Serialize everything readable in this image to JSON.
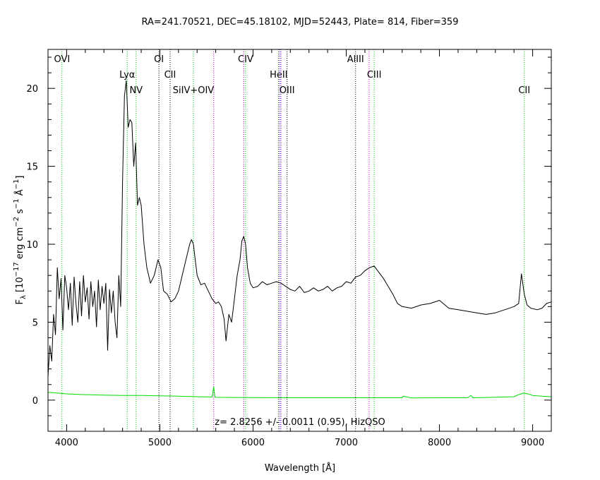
{
  "chart_data": {
    "type": "line",
    "title": "RA=241.70521, DEC=45.18102, MJD=52443, Plate= 814, Fiber=359",
    "xlabel": "Wavelength [Å]",
    "ylabel": {
      "base": "F",
      "sub": "λ",
      "open": " [10",
      "exp1": "−17",
      "mid1": " erg cm",
      "exp2": "−2",
      "mid2": " s",
      "exp3": "−1",
      "mid3": " Å",
      "exp4": "−1",
      "close": "]"
    },
    "xlim": [
      3800,
      9200
    ],
    "ylim": [
      -2,
      22.5
    ],
    "xticks": [
      4000,
      5000,
      6000,
      7000,
      8000,
      9000
    ],
    "yticks": [
      0,
      5,
      10,
      15,
      20
    ],
    "annotation": "z= 2.8256 +/- 0.0011 (0.95), HizQSO",
    "colors": {
      "spectrum": "#000000",
      "error": "#00dd00",
      "line_green": "#00cc00",
      "line_black": "#000000",
      "line_magenta": "#cc00cc",
      "line_blue": "#3333ff"
    },
    "lines": [
      {
        "name": "OVI",
        "x": 3950,
        "color": "green",
        "row": 0
      },
      {
        "name": "Lyα",
        "x": 4650,
        "color": "green",
        "row": 1
      },
      {
        "name": "NV",
        "x": 4745,
        "color": "green",
        "row": 2
      },
      {
        "name": "OI",
        "x": 4990,
        "color": "black",
        "row": 0
      },
      {
        "name": "CII",
        "x": 5110,
        "color": "black",
        "row": 1
      },
      {
        "name": "SiIV+OIV",
        "x": 5360,
        "color": "green",
        "row": 2
      },
      {
        "name": "",
        "x": 5578,
        "color": "magenta",
        "row": 0
      },
      {
        "name": "CIV",
        "x": 5920,
        "color": "green",
        "row": 0
      },
      {
        "name": "",
        "x": 5900,
        "color": "magenta",
        "row": 0
      },
      {
        "name": "HeII",
        "x": 6275,
        "color": "black",
        "row": 1
      },
      {
        "name": "",
        "x": 6300,
        "color": "magenta",
        "row": 0
      },
      {
        "name": "",
        "x": 6290,
        "color": "blue",
        "row": 0
      },
      {
        "name": "OIII",
        "x": 6365,
        "color": "black",
        "row": 2
      },
      {
        "name": "AlIII",
        "x": 7100,
        "color": "black",
        "row": 0
      },
      {
        "name": "",
        "x": 7245,
        "color": "magenta",
        "row": 0
      },
      {
        "name": "CIII",
        "x": 7300,
        "color": "green",
        "row": 1
      },
      {
        "name": "CII",
        "x": 8910,
        "color": "green",
        "row": 2
      }
    ],
    "series": [
      {
        "kind": "flux",
        "x": [
          3800,
          3820,
          3840,
          3860,
          3880,
          3900,
          3920,
          3940,
          3960,
          3980,
          4000,
          4020,
          4040,
          4060,
          4080,
          4100,
          4120,
          4140,
          4160,
          4180,
          4200,
          4220,
          4240,
          4260,
          4280,
          4300,
          4320,
          4340,
          4360,
          4380,
          4400,
          4420,
          4440,
          4460,
          4480,
          4500,
          4520,
          4540,
          4560,
          4580,
          4600,
          4620,
          4640,
          4660,
          4680,
          4700,
          4720,
          4740,
          4760,
          4780,
          4800,
          4830,
          4860,
          4900,
          4940,
          4980,
          5010,
          5040,
          5080,
          5120,
          5160,
          5200,
          5240,
          5280,
          5320,
          5340,
          5360,
          5380,
          5400,
          5440,
          5480,
          5520,
          5560,
          5600,
          5630,
          5660,
          5690,
          5710,
          5740,
          5770,
          5800,
          5830,
          5860,
          5880,
          5900,
          5920,
          5940,
          5970,
          6000,
          6050,
          6100,
          6150,
          6200,
          6250,
          6300,
          6350,
          6400,
          6450,
          6500,
          6550,
          6600,
          6650,
          6700,
          6750,
          6800,
          6850,
          6900,
          6950,
          7000,
          7050,
          7100,
          7150,
          7200,
          7250,
          7300,
          7350,
          7400,
          7450,
          7500,
          7550,
          7600,
          7700,
          7800,
          7900,
          8000,
          8100,
          8200,
          8300,
          8400,
          8500,
          8600,
          8700,
          8800,
          8850,
          8880,
          8910,
          8940,
          8980,
          9050,
          9100,
          9150,
          9200
        ],
        "y": [
          1.5,
          3.5,
          2.5,
          5.5,
          4.2,
          8.5,
          6.5,
          7.8,
          4.5,
          8.0,
          7.2,
          5.8,
          7.5,
          4.8,
          7.9,
          6.2,
          5.0,
          7.6,
          5.4,
          8.0,
          6.3,
          7.2,
          5.2,
          7.6,
          6.0,
          7.0,
          4.7,
          7.7,
          5.8,
          7.3,
          6.2,
          7.5,
          3.2,
          7.1,
          5.6,
          7.0,
          5.0,
          4.0,
          8.0,
          6.0,
          14.0,
          19.5,
          20.5,
          17.5,
          18.0,
          17.8,
          15.0,
          16.5,
          12.5,
          13.0,
          12.5,
          10.0,
          8.5,
          7.5,
          8.0,
          9.0,
          8.5,
          7.0,
          6.8,
          6.3,
          6.5,
          7.0,
          8.0,
          9.0,
          10.0,
          10.3,
          10.0,
          9.0,
          8.0,
          7.4,
          7.5,
          7.0,
          6.5,
          6.2,
          6.3,
          6.0,
          5.2,
          3.8,
          5.5,
          5.0,
          6.5,
          8.0,
          9.0,
          10.2,
          10.5,
          10.0,
          8.5,
          7.5,
          7.2,
          7.3,
          7.6,
          7.4,
          7.5,
          7.6,
          7.5,
          7.3,
          7.1,
          7.0,
          7.3,
          6.9,
          7.0,
          7.2,
          7.0,
          7.1,
          7.3,
          7.0,
          7.2,
          7.3,
          7.6,
          7.5,
          7.9,
          8.0,
          8.3,
          8.5,
          8.6,
          8.2,
          7.8,
          7.3,
          6.8,
          6.2,
          6.0,
          5.9,
          6.1,
          6.2,
          6.4,
          5.9,
          5.8,
          5.7,
          5.6,
          5.5,
          5.6,
          5.8,
          6.0,
          6.2,
          8.1,
          6.8,
          6.1,
          5.9,
          5.8,
          5.9,
          6.2,
          6.3
        ]
      },
      {
        "kind": "error",
        "x": [
          3800,
          3900,
          4000,
          4200,
          4400,
          4600,
          4800,
          5000,
          5200,
          5400,
          5560,
          5578,
          5590,
          5600,
          5800,
          6000,
          6500,
          7000,
          7500,
          7600,
          7610,
          7700,
          8000,
          8300,
          8340,
          8360,
          8500,
          8800,
          8850,
          8900,
          8950,
          9000,
          9100,
          9200
        ],
        "y": [
          0.5,
          0.45,
          0.4,
          0.35,
          0.32,
          0.3,
          0.3,
          0.28,
          0.25,
          0.22,
          0.2,
          0.85,
          0.2,
          0.18,
          0.17,
          0.16,
          0.15,
          0.15,
          0.15,
          0.15,
          0.25,
          0.14,
          0.15,
          0.15,
          0.3,
          0.15,
          0.17,
          0.22,
          0.35,
          0.45,
          0.4,
          0.3,
          0.25,
          0.22
        ]
      }
    ]
  }
}
